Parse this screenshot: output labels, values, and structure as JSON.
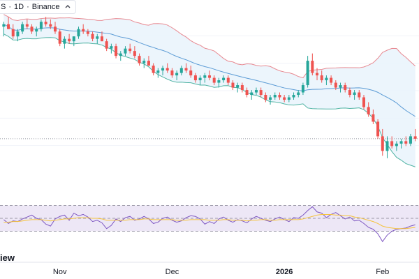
{
  "header": {
    "symbol_tail": "S",
    "interval": "1D",
    "exchange": "Binance",
    "sep": "·"
  },
  "brand": {
    "text": "iew"
  },
  "colors": {
    "up": "#26a69a",
    "down": "#ef5350",
    "bb_upper": "#e88991",
    "bb_middle": "#5b9bd5",
    "bb_lower": "#4fb3a3",
    "bb_fill": "#e9f3fc",
    "rsi_line": "#7e57c2",
    "rsi_ma": "#f5c33b",
    "rsi_band": "#ede7f6",
    "grid": "#f0f3fa",
    "axis_text": "#131722"
  },
  "icons": {
    "collapse": "collapse-chevron-icon"
  },
  "chart_data": [
    {
      "type": "candlestick",
      "title": "",
      "x_ticks": [
        "Nov",
        "Dec",
        "2026",
        "Feb"
      ],
      "price_line_visible": true,
      "overlays": [
        "bollinger_upper",
        "bollinger_middle",
        "bollinger_lower"
      ],
      "ohlc": [
        [
          100,
          102,
          96,
          101
        ],
        [
          101,
          104,
          99,
          99
        ],
        [
          99,
          101,
          95,
          96
        ],
        [
          96,
          99,
          94,
          98
        ],
        [
          98,
          102,
          97,
          101
        ],
        [
          101,
          103,
          99,
          100
        ],
        [
          100,
          101,
          97,
          98
        ],
        [
          98,
          100,
          96,
          99
        ],
        [
          99,
          103,
          98,
          102
        ],
        [
          102,
          104,
          100,
          101
        ],
        [
          101,
          103,
          99,
          100
        ],
        [
          100,
          102,
          97,
          98
        ],
        [
          98,
          99,
          92,
          93
        ],
        [
          93,
          96,
          91,
          95
        ],
        [
          95,
          97,
          93,
          94
        ],
        [
          94,
          96,
          92,
          96
        ],
        [
          96,
          100,
          95,
          99
        ],
        [
          99,
          101,
          97,
          98
        ],
        [
          98,
          99,
          96,
          97
        ],
        [
          97,
          98,
          94,
          95
        ],
        [
          95,
          97,
          93,
          96
        ],
        [
          96,
          98,
          94,
          94
        ],
        [
          94,
          95,
          90,
          91
        ],
        [
          91,
          93,
          89,
          92
        ],
        [
          92,
          93,
          87,
          88
        ],
        [
          88,
          90,
          86,
          89
        ],
        [
          89,
          92,
          88,
          91
        ],
        [
          91,
          93,
          89,
          90
        ],
        [
          90,
          92,
          87,
          88
        ],
        [
          88,
          89,
          84,
          85
        ],
        [
          85,
          87,
          83,
          86
        ],
        [
          86,
          88,
          84,
          84
        ],
        [
          84,
          85,
          80,
          81
        ],
        [
          81,
          83,
          79,
          82
        ],
        [
          82,
          84,
          80,
          83
        ],
        [
          83,
          85,
          81,
          82
        ],
        [
          82,
          83,
          79,
          80
        ],
        [
          80,
          82,
          78,
          81
        ],
        [
          81,
          84,
          80,
          83
        ],
        [
          83,
          85,
          81,
          82
        ],
        [
          82,
          84,
          79,
          80
        ],
        [
          80,
          81,
          77,
          78
        ],
        [
          78,
          80,
          76,
          79
        ],
        [
          79,
          81,
          77,
          80
        ],
        [
          80,
          82,
          78,
          79
        ],
        [
          79,
          80,
          76,
          77
        ],
        [
          77,
          79,
          75,
          78
        ],
        [
          78,
          80,
          77,
          79
        ],
        [
          79,
          80,
          76,
          77
        ],
        [
          77,
          78,
          74,
          75
        ],
        [
          75,
          77,
          73,
          76
        ],
        [
          76,
          77,
          73,
          74
        ],
        [
          74,
          75,
          71,
          72
        ],
        [
          72,
          74,
          70,
          73
        ],
        [
          73,
          75,
          72,
          74
        ],
        [
          74,
          75,
          71,
          72
        ],
        [
          72,
          73,
          69,
          70
        ],
        [
          70,
          72,
          68,
          71
        ],
        [
          71,
          73,
          70,
          72
        ],
        [
          72,
          73,
          70,
          71
        ],
        [
          71,
          72,
          69,
          70
        ],
        [
          70,
          72,
          69,
          71
        ],
        [
          71,
          73,
          70,
          72
        ],
        [
          72,
          74,
          71,
          73
        ],
        [
          73,
          77,
          72,
          76
        ],
        [
          76,
          88,
          75,
          86
        ],
        [
          86,
          89,
          80,
          81
        ],
        [
          81,
          83,
          78,
          80
        ],
        [
          80,
          82,
          77,
          78
        ],
        [
          78,
          80,
          76,
          79
        ],
        [
          79,
          80,
          76,
          77
        ],
        [
          77,
          78,
          74,
          75
        ],
        [
          75,
          77,
          73,
          76
        ],
        [
          76,
          77,
          73,
          74
        ],
        [
          74,
          75,
          71,
          72
        ],
        [
          72,
          74,
          70,
          73
        ],
        [
          73,
          74,
          70,
          71
        ],
        [
          71,
          72,
          66,
          67
        ],
        [
          67,
          69,
          63,
          64
        ],
        [
          64,
          66,
          60,
          61
        ],
        [
          61,
          62,
          54,
          55
        ],
        [
          55,
          58,
          47,
          49
        ],
        [
          49,
          55,
          46,
          53
        ],
        [
          53,
          55,
          50,
          51
        ],
        [
          51,
          53,
          49,
          52
        ],
        [
          52,
          54,
          50,
          53
        ],
        [
          53,
          55,
          51,
          52
        ],
        [
          52,
          56,
          51,
          55
        ],
        [
          55,
          58,
          53,
          54
        ]
      ]
    },
    {
      "type": "line",
      "title": "",
      "levels": [
        70,
        50,
        30
      ],
      "series": [
        {
          "values": [
            48,
            42,
            46,
            45,
            49,
            52,
            55,
            50,
            48,
            41,
            38,
            49,
            53,
            55,
            47,
            58,
            54,
            56,
            52,
            45,
            47,
            43,
            34,
            39,
            49,
            45,
            51,
            53,
            47,
            49,
            53,
            49,
            42,
            44,
            50,
            52,
            47,
            44,
            46,
            51,
            54,
            53,
            49,
            41,
            45,
            42,
            49,
            52,
            47,
            44,
            48,
            46,
            43,
            49,
            53,
            50,
            47,
            45,
            49,
            52,
            48,
            45,
            51,
            50,
            55,
            62,
            68,
            60,
            58,
            51,
            56,
            59,
            54,
            49,
            52,
            46,
            47,
            42,
            36,
            33,
            26,
            14,
            24,
            30,
            33,
            34,
            35,
            38,
            40
          ]
        },
        {
          "values": [
            44,
            44,
            45,
            45,
            46,
            47,
            48,
            48,
            48,
            47,
            46,
            47,
            48,
            49,
            49,
            50,
            51,
            51,
            51,
            50,
            50,
            49,
            47,
            47,
            47,
            47,
            47,
            48,
            48,
            48,
            49,
            49,
            48,
            48,
            48,
            48,
            48,
            47,
            47,
            47,
            48,
            48,
            48,
            48,
            47,
            47,
            47,
            48,
            48,
            47,
            47,
            47,
            46,
            47,
            47,
            48,
            48,
            47,
            47,
            48,
            48,
            48,
            48,
            48,
            49,
            51,
            53,
            55,
            56,
            56,
            56,
            55,
            55,
            54,
            54,
            52,
            51,
            49,
            47,
            45,
            42,
            38,
            36,
            35,
            34,
            34,
            34,
            35,
            36
          ]
        }
      ]
    }
  ]
}
